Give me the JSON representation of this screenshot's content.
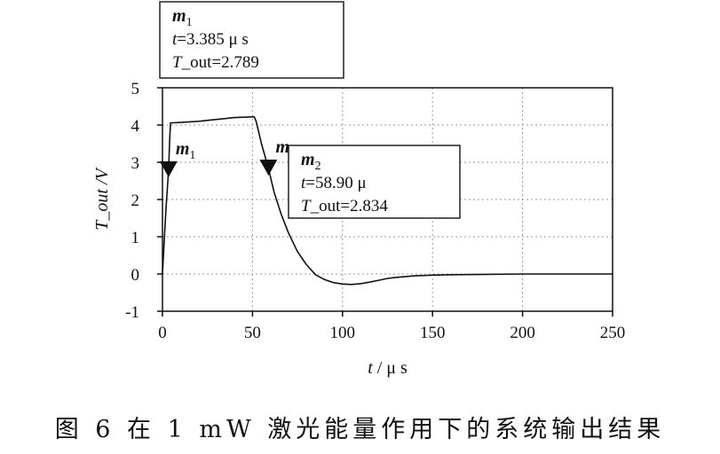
{
  "chart_data": {
    "type": "line",
    "xlabel_var": "t",
    "xlabel_unit": " / μ s",
    "ylabel": "T_out /V",
    "xlim": [
      0,
      250
    ],
    "ylim": [
      -1,
      5
    ],
    "x_ticks": [
      0,
      50,
      100,
      150,
      200,
      250
    ],
    "y_ticks": [
      -1,
      0,
      1,
      2,
      3,
      4,
      5
    ],
    "grid": true,
    "series": [
      {
        "x": [
          0,
          1,
          2,
          3.385,
          4,
          4.5,
          6,
          10,
          20,
          30,
          40,
          50,
          51,
          52,
          53,
          55,
          58.9,
          62,
          66,
          70,
          75,
          80,
          85,
          90,
          95,
          100,
          105,
          110,
          115,
          120,
          125,
          130,
          140,
          150,
          160,
          180,
          200,
          230,
          250
        ],
        "y": [
          0,
          0.9,
          1.8,
          2.789,
          3.6,
          4.06,
          4.06,
          4.07,
          4.1,
          4.15,
          4.2,
          4.22,
          4.22,
          4.1,
          3.9,
          3.5,
          2.834,
          2.2,
          1.6,
          1.1,
          0.6,
          0.25,
          -0.02,
          -0.15,
          -0.23,
          -0.27,
          -0.28,
          -0.26,
          -0.22,
          -0.17,
          -0.12,
          -0.09,
          -0.05,
          -0.03,
          -0.02,
          -0.01,
          0,
          0,
          0
        ]
      }
    ],
    "markers": [
      {
        "name": "m",
        "sub": "1",
        "x": 3.385,
        "y": 2.789,
        "line1_var": "t",
        "line1_rest": "=3.385 μ s",
        "line2_var": "T",
        "line2_rest": "_out=2.789"
      },
      {
        "name": "m",
        "sub": "2",
        "x": 58.9,
        "y": 2.834,
        "line1_var": "t",
        "line1_rest": "=58.90 μ",
        "line2_var": "T",
        "line2_rest": "_out=2.834"
      }
    ]
  },
  "caption": "图 6  在 1 mW 激光能量作用下的系统输出结果"
}
